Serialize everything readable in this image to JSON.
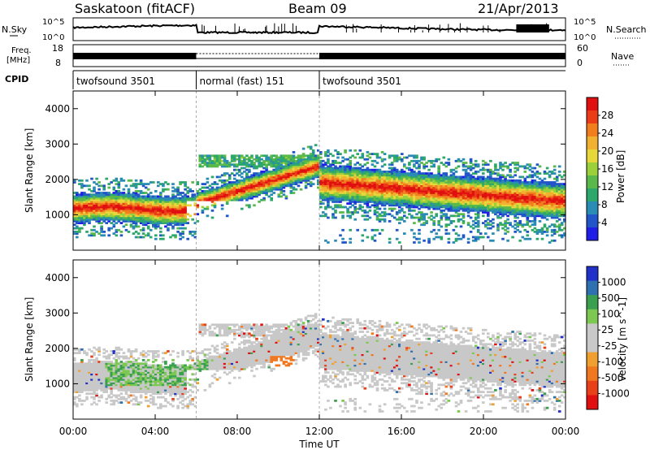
{
  "header": {
    "station": "Saskatoon (fitACF)",
    "beam": "Beam 09",
    "date": "21/Apr/2013"
  },
  "top_panels": {
    "nsky_label": "N.Sky",
    "nsearch_label": "N.Search",
    "nsky_ticks": [
      "10^5",
      "10^0"
    ],
    "nsearch_ticks": [
      "10^5",
      "10^0"
    ],
    "freq_label_1": "Freq.",
    "freq_label_2": "[MHz]",
    "freq_ticks": [
      "18",
      "8"
    ],
    "nave_label": "Nave",
    "nave_ticks": [
      "60",
      "0"
    ],
    "cpid_label": "CPID",
    "cpid_segments": [
      {
        "label": "twofsound 3501",
        "start_h": 0,
        "end_h": 6
      },
      {
        "label": "normal (fast) 151",
        "start_h": 6,
        "end_h": 12
      },
      {
        "label": "twofsound 3501",
        "start_h": 12,
        "end_h": 24
      }
    ]
  },
  "colors": {
    "power": [
      "#1e1ee6",
      "#2255c8",
      "#2a8cb4",
      "#2ea86a",
      "#5ab94a",
      "#9ad03a",
      "#e6d83a",
      "#f0b030",
      "#f07d1e",
      "#eb3c18",
      "#e01010"
    ],
    "velocity": [
      "#2030c8",
      "#2e70b0",
      "#3aa050",
      "#7cc850",
      "#c8c8c8",
      "#c8c8c8",
      "#f0a030",
      "#f07820",
      "#e84018",
      "#e01010"
    ]
  },
  "chart_data": [
    {
      "type": "heatmap",
      "title": "",
      "xlabel": "",
      "ylabel": "Slant Range [km]",
      "x_ticks": [
        "00:00",
        "04:00",
        "08:00",
        "12:00",
        "16:00",
        "20:00",
        "00:00"
      ],
      "y_ticks": [
        "1000",
        "2000",
        "3000",
        "4000"
      ],
      "ylim": [
        0,
        4500
      ],
      "xlim_hours": [
        0,
        24
      ],
      "colorbar_label": "Power [dB]",
      "colorbar_ticks": [
        "4",
        "8",
        "12",
        "16",
        "20",
        "24",
        "28"
      ],
      "colorbar_range": [
        0,
        30
      ],
      "features": [
        {
          "region": "main_echo_band",
          "time_h": [
            0,
            24
          ],
          "range_km": [
            900,
            2200
          ],
          "power_db": [
            12,
            30
          ]
        },
        {
          "region": "high_range_echoes",
          "time_h": [
            6,
            13
          ],
          "range_km": [
            2200,
            3400
          ],
          "power_db": [
            4,
            16
          ]
        },
        {
          "region": "near_range_noise",
          "time_h": [
            6,
            24
          ],
          "range_km": [
            150,
            600
          ],
          "power_db": [
            4,
            10
          ]
        }
      ]
    },
    {
      "type": "heatmap",
      "title": "",
      "xlabel": "Time UT",
      "ylabel": "Slant Range [km]",
      "x_ticks": [
        "00:00",
        "04:00",
        "08:00",
        "12:00",
        "16:00",
        "20:00",
        "00:00"
      ],
      "y_ticks": [
        "1000",
        "2000",
        "3000",
        "4000"
      ],
      "ylim": [
        0,
        4500
      ],
      "xlim_hours": [
        0,
        24
      ],
      "colorbar_label": "Velocity [m s^-1]",
      "colorbar_ticks": [
        "1000",
        "500",
        "100",
        "25",
        "-25",
        "-100",
        "-500",
        "-1000"
      ],
      "colorbar_range": [
        -1000,
        1000
      ],
      "features": [
        {
          "region": "ground_scatter_band",
          "time_h": [
            0,
            24
          ],
          "range_km": [
            900,
            2700
          ],
          "velocity_ms": [
            -25,
            25
          ]
        },
        {
          "region": "ionospheric_echoes",
          "time_h": [
            2,
            8
          ],
          "range_km": [
            900,
            2000
          ],
          "velocity_ms": [
            -100,
            500
          ]
        },
        {
          "region": "receding_echoes",
          "time_h": [
            9,
            11
          ],
          "range_km": [
            1400,
            1800
          ],
          "velocity_ms": [
            -500,
            -100
          ]
        }
      ]
    }
  ]
}
